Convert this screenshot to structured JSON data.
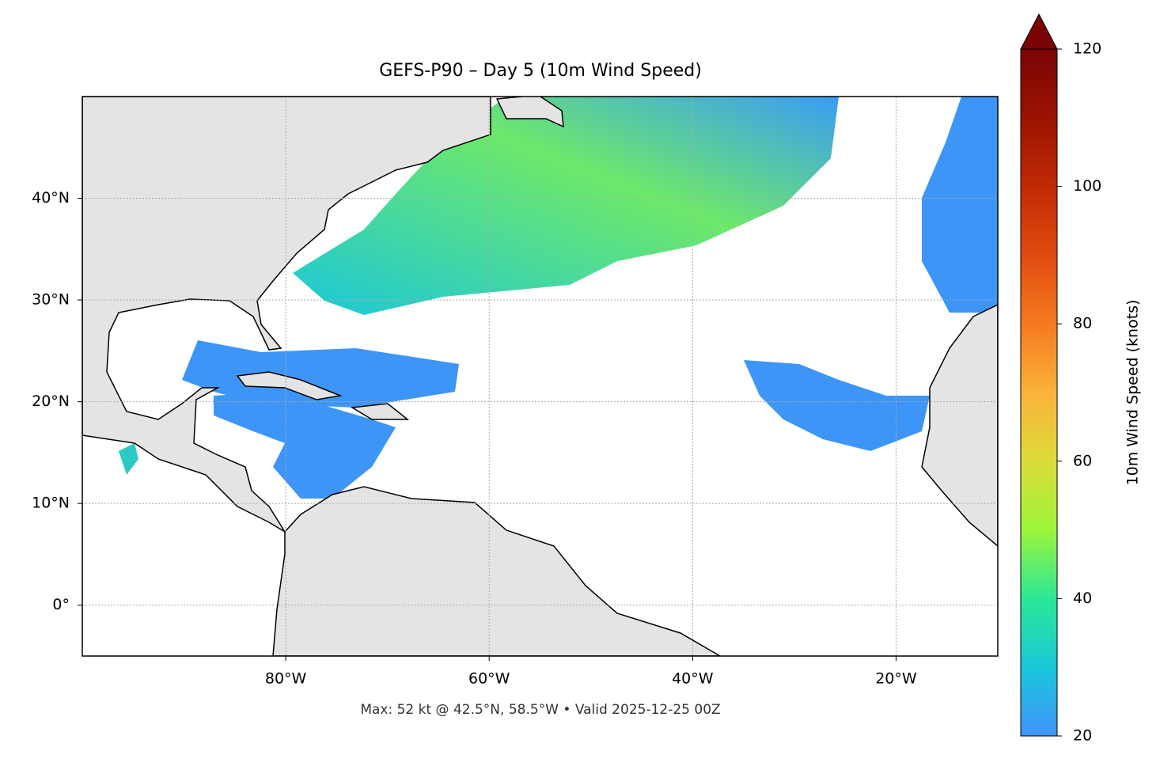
{
  "title": "GEFS-P90 – Day 5 (10m Wind Speed)",
  "map": {
    "xlim": [
      -100,
      -10
    ],
    "ylim": [
      -5,
      50
    ],
    "xticks": [
      {
        "value": -80,
        "label": "80°W"
      },
      {
        "value": -60,
        "label": "60°W"
      },
      {
        "value": -40,
        "label": "40°W"
      },
      {
        "value": -20,
        "label": "20°W"
      }
    ],
    "yticks": [
      {
        "value": 0,
        "label": "0°"
      },
      {
        "value": 10,
        "label": "10°N"
      },
      {
        "value": 20,
        "label": "20°N"
      },
      {
        "value": 30,
        "label": "30°N"
      },
      {
        "value": 40,
        "label": "40°N"
      }
    ],
    "grid": true
  },
  "colorbar": {
    "label": "10m Wind Speed (knots)",
    "lim": [
      20,
      120
    ],
    "ticks": [
      20,
      40,
      60,
      80,
      100,
      120
    ],
    "colors": [
      "#4192fb",
      "#1bc7d9",
      "#2ae896",
      "#9cf53b",
      "#dcdc3a",
      "#fbb23b",
      "#f5791f",
      "#e04b0f",
      "#c02a05",
      "#9a1302",
      "#7a0403"
    ]
  },
  "footer": "Max: 52 kt @ 42.5°N, 58.5°W • Valid 2025-12-25 00Z"
}
